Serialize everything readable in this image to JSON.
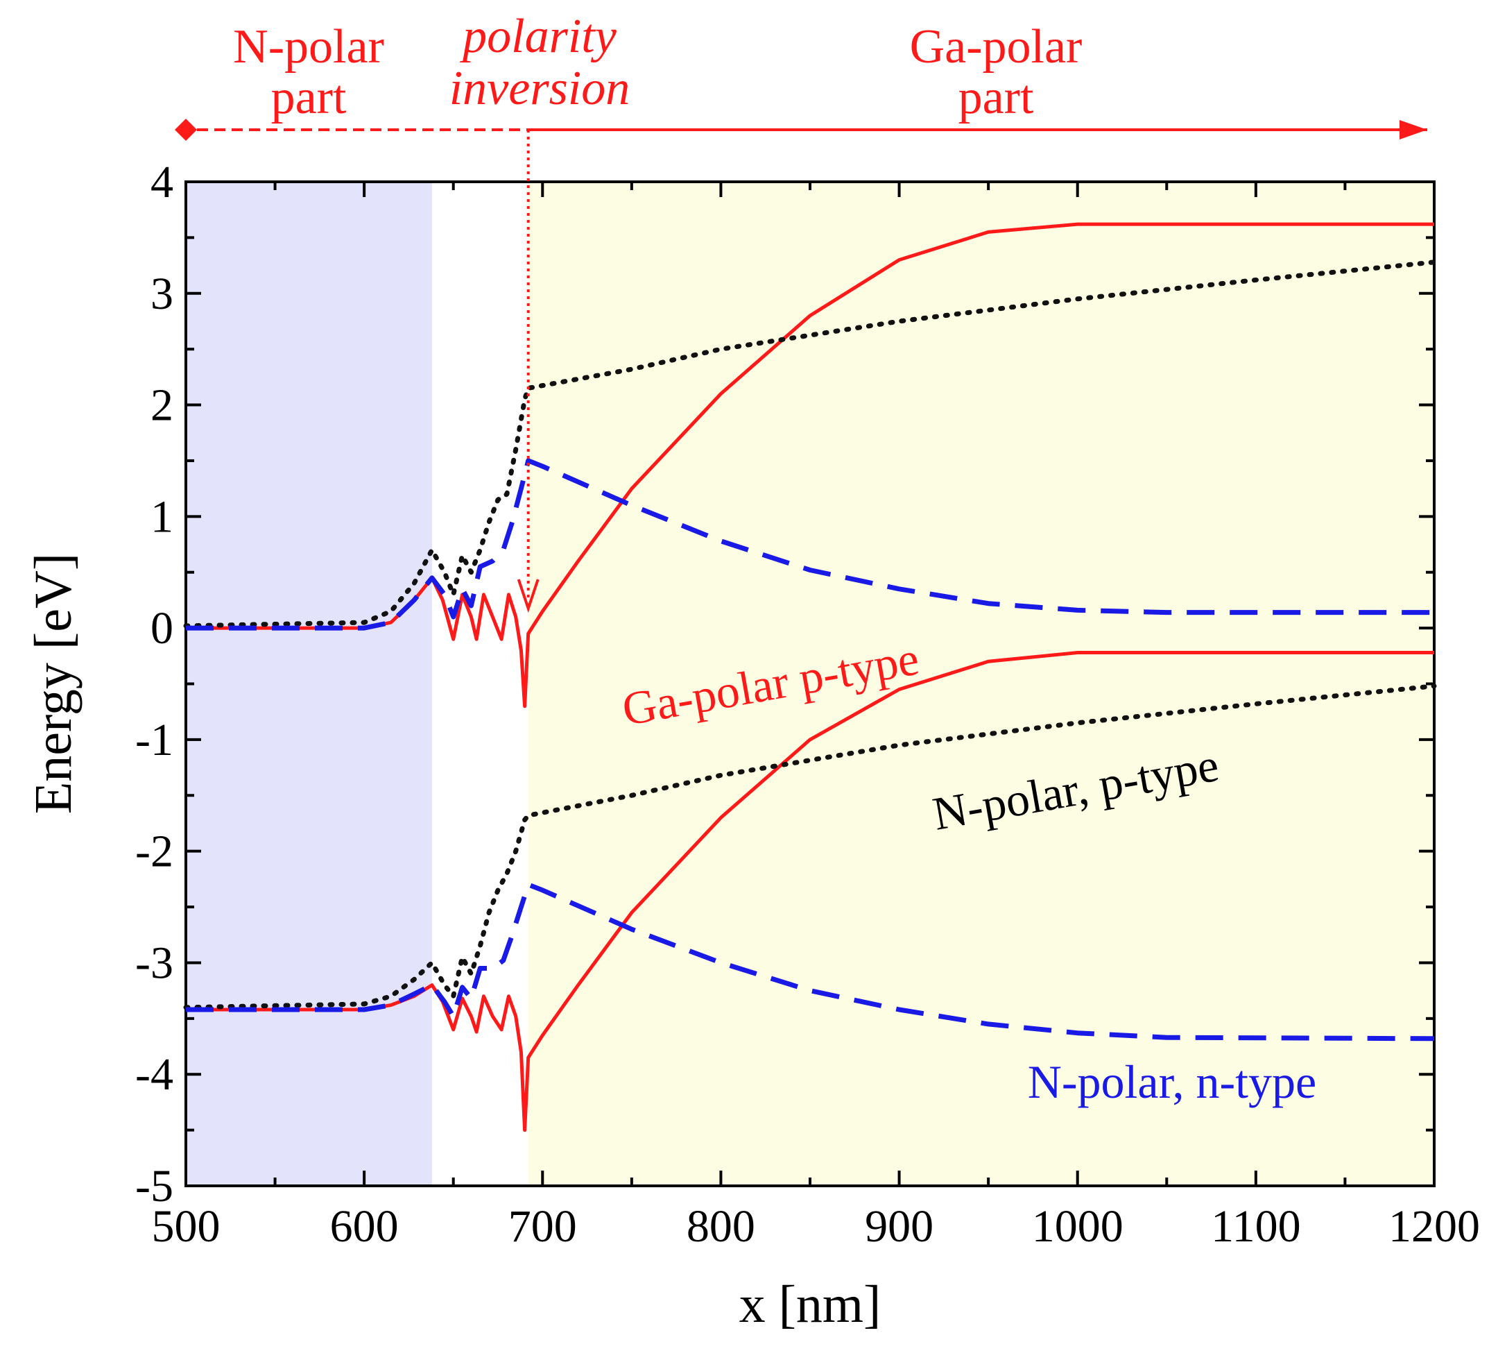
{
  "chart_data": {
    "type": "line",
    "xlabel": "x [nm]",
    "ylabel": "Energy [eV]",
    "xlim": [
      500,
      1200
    ],
    "ylim": [
      -5,
      4
    ],
    "xticks": [
      500,
      600,
      700,
      800,
      900,
      1000,
      1100,
      1200
    ],
    "yticks": [
      4,
      3,
      2,
      1,
      0,
      -1,
      -2,
      -3,
      -4,
      -5
    ],
    "regions": [
      {
        "name": "N-polar shaded region",
        "x_range": [
          500,
          638
        ],
        "color": "#e3e3fb"
      },
      {
        "name": "Ga-polar shaded region",
        "x_range": [
          692,
          1200
        ],
        "color": "#fdfde3"
      }
    ],
    "top_annotations": {
      "n_polar_part": [
        "N-polar",
        "part"
      ],
      "polarity_inversion": [
        "polarity",
        "inversion"
      ],
      "ga_polar_part": [
        "Ga-polar",
        "part"
      ],
      "inversion_x": 692,
      "color": "#ff1a1a"
    },
    "series": [
      {
        "name": "Ga-polar p-type",
        "color": "#ff1a1a",
        "style": "solid",
        "label_color": "#ff1a1a",
        "bands": [
          {
            "band": "conduction",
            "points": [
              [
                500,
                0.0
              ],
              [
                600,
                0.0
              ],
              [
                615,
                0.05
              ],
              [
                628,
                0.25
              ],
              [
                638,
                0.45
              ],
              [
                644,
                0.25
              ],
              [
                650,
                -0.1
              ],
              [
                655,
                0.3
              ],
              [
                660,
                0.1
              ],
              [
                663,
                -0.1
              ],
              [
                667,
                0.3
              ],
              [
                672,
                0.1
              ],
              [
                677,
                -0.1
              ],
              [
                681,
                0.3
              ],
              [
                685,
                0.1
              ],
              [
                688,
                -0.2
              ],
              [
                690,
                -0.7
              ],
              [
                692,
                -0.05
              ],
              [
                700,
                0.15
              ],
              [
                720,
                0.6
              ],
              [
                750,
                1.25
              ],
              [
                800,
                2.1
              ],
              [
                850,
                2.8
              ],
              [
                900,
                3.3
              ],
              [
                950,
                3.55
              ],
              [
                1000,
                3.62
              ],
              [
                1100,
                3.62
              ],
              [
                1200,
                3.62
              ]
            ]
          },
          {
            "band": "valence",
            "points": [
              [
                500,
                -3.42
              ],
              [
                600,
                -3.42
              ],
              [
                615,
                -3.38
              ],
              [
                628,
                -3.3
              ],
              [
                638,
                -3.2
              ],
              [
                644,
                -3.35
              ],
              [
                650,
                -3.6
              ],
              [
                655,
                -3.32
              ],
              [
                660,
                -3.48
              ],
              [
                663,
                -3.62
              ],
              [
                667,
                -3.3
              ],
              [
                672,
                -3.48
              ],
              [
                677,
                -3.6
              ],
              [
                681,
                -3.3
              ],
              [
                685,
                -3.48
              ],
              [
                688,
                -3.8
              ],
              [
                690,
                -4.5
              ],
              [
                692,
                -3.85
              ],
              [
                700,
                -3.65
              ],
              [
                720,
                -3.2
              ],
              [
                750,
                -2.55
              ],
              [
                800,
                -1.7
              ],
              [
                850,
                -1.0
              ],
              [
                900,
                -0.55
              ],
              [
                950,
                -0.3
              ],
              [
                1000,
                -0.22
              ],
              [
                1100,
                -0.22
              ],
              [
                1200,
                -0.22
              ]
            ]
          }
        ]
      },
      {
        "name": "N-polar, p-type",
        "color": "#111111",
        "style": "dotted",
        "label_color": "#000000",
        "bands": [
          {
            "band": "conduction",
            "points": [
              [
                500,
                0.02
              ],
              [
                600,
                0.05
              ],
              [
                615,
                0.15
              ],
              [
                628,
                0.4
              ],
              [
                638,
                0.7
              ],
              [
                645,
                0.5
              ],
              [
                650,
                0.3
              ],
              [
                655,
                0.65
              ],
              [
                660,
                0.5
              ],
              [
                665,
                0.7
              ],
              [
                670,
                0.95
              ],
              [
                675,
                1.15
              ],
              [
                680,
                1.2
              ],
              [
                685,
                1.6
              ],
              [
                690,
                2.05
              ],
              [
                692,
                2.15
              ],
              [
                750,
                2.32
              ],
              [
                800,
                2.5
              ],
              [
                900,
                2.75
              ],
              [
                1000,
                2.95
              ],
              [
                1100,
                3.12
              ],
              [
                1200,
                3.28
              ]
            ]
          },
          {
            "band": "valence",
            "points": [
              [
                500,
                -3.4
              ],
              [
                600,
                -3.37
              ],
              [
                615,
                -3.3
              ],
              [
                628,
                -3.15
              ],
              [
                638,
                -3.0
              ],
              [
                645,
                -3.2
              ],
              [
                650,
                -3.3
              ],
              [
                655,
                -2.95
              ],
              [
                660,
                -3.1
              ],
              [
                665,
                -2.85
              ],
              [
                670,
                -2.55
              ],
              [
                675,
                -2.35
              ],
              [
                680,
                -2.2
              ],
              [
                685,
                -2.0
              ],
              [
                690,
                -1.72
              ],
              [
                692,
                -1.68
              ],
              [
                750,
                -1.5
              ],
              [
                800,
                -1.32
              ],
              [
                900,
                -1.05
              ],
              [
                1000,
                -0.85
              ],
              [
                1100,
                -0.68
              ],
              [
                1200,
                -0.52
              ]
            ]
          }
        ]
      },
      {
        "name": "N-polar, n-type",
        "color": "#1a1ae6",
        "style": "dashed",
        "label_color": "#1a1ae6",
        "bands": [
          {
            "band": "conduction",
            "points": [
              [
                500,
                0.0
              ],
              [
                600,
                0.0
              ],
              [
                615,
                0.05
              ],
              [
                628,
                0.25
              ],
              [
                638,
                0.45
              ],
              [
                645,
                0.3
              ],
              [
                650,
                0.1
              ],
              [
                655,
                0.35
              ],
              [
                660,
                0.2
              ],
              [
                665,
                0.55
              ],
              [
                672,
                0.6
              ],
              [
                678,
                0.7
              ],
              [
                683,
                0.95
              ],
              [
                688,
                1.25
              ],
              [
                692,
                1.5
              ],
              [
                700,
                1.45
              ],
              [
                750,
                1.1
              ],
              [
                800,
                0.78
              ],
              [
                850,
                0.52
              ],
              [
                900,
                0.35
              ],
              [
                950,
                0.22
              ],
              [
                1000,
                0.16
              ],
              [
                1050,
                0.14
              ],
              [
                1200,
                0.14
              ]
            ]
          },
          {
            "band": "valence",
            "points": [
              [
                500,
                -3.42
              ],
              [
                600,
                -3.42
              ],
              [
                615,
                -3.38
              ],
              [
                628,
                -3.28
              ],
              [
                638,
                -3.2
              ],
              [
                645,
                -3.35
              ],
              [
                650,
                -3.48
              ],
              [
                655,
                -3.22
              ],
              [
                660,
                -3.32
              ],
              [
                665,
                -3.05
              ],
              [
                672,
                -3.05
              ],
              [
                678,
                -2.98
              ],
              [
                683,
                -2.75
              ],
              [
                688,
                -2.5
              ],
              [
                692,
                -2.3
              ],
              [
                700,
                -2.35
              ],
              [
                750,
                -2.7
              ],
              [
                800,
                -3.0
              ],
              [
                850,
                -3.25
              ],
              [
                900,
                -3.42
              ],
              [
                950,
                -3.55
              ],
              [
                1000,
                -3.63
              ],
              [
                1050,
                -3.67
              ],
              [
                1200,
                -3.68
              ]
            ]
          }
        ]
      }
    ]
  }
}
